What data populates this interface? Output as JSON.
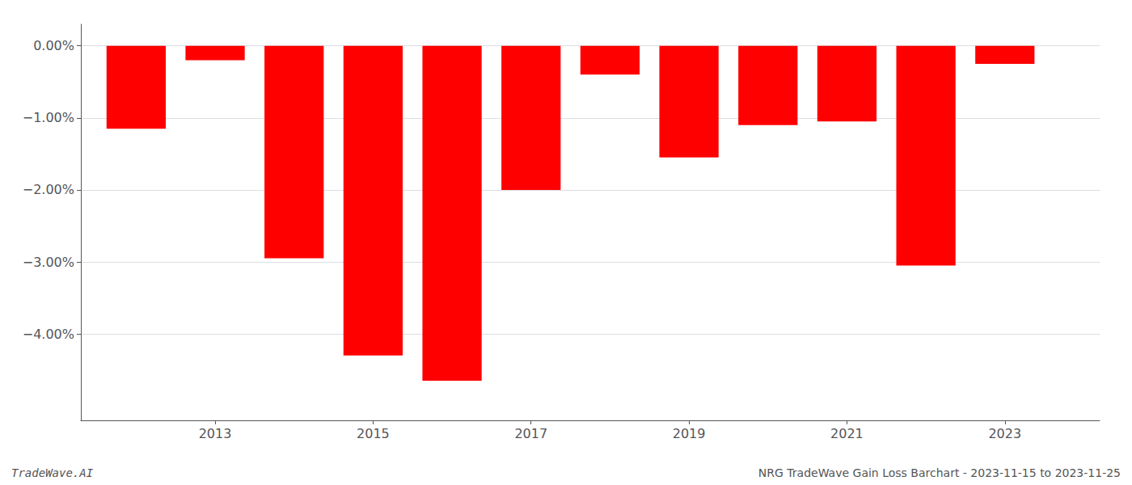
{
  "chart_data": {
    "type": "bar",
    "x": [
      2012,
      2013,
      2014,
      2015,
      2016,
      2017,
      2018,
      2019,
      2020,
      2021,
      2022,
      2023
    ],
    "values": [
      -0.0115,
      -0.002,
      -0.0295,
      -0.043,
      -0.0465,
      -0.02,
      -0.004,
      -0.0155,
      -0.011,
      -0.0105,
      -0.0305,
      -0.0025
    ],
    "color": "#ff0000",
    "xlim": [
      2011.3,
      2024.2
    ],
    "xticks": [
      2013,
      2015,
      2017,
      2019,
      2021,
      2023
    ],
    "ylim": [
      -0.052,
      0.003
    ],
    "yticks": [
      {
        "value": 0.0,
        "label": "0.00%"
      },
      {
        "value": -0.01,
        "label": "−1.00%"
      },
      {
        "value": -0.02,
        "label": "−2.00%"
      },
      {
        "value": -0.03,
        "label": "−3.00%"
      },
      {
        "value": -0.04,
        "label": "−4.00%"
      }
    ],
    "grid": true,
    "annotations": [
      "TradeWave.AI",
      "NRG TradeWave Gain Loss Barchart - 2023-11-15 to 2023-11-25"
    ]
  }
}
